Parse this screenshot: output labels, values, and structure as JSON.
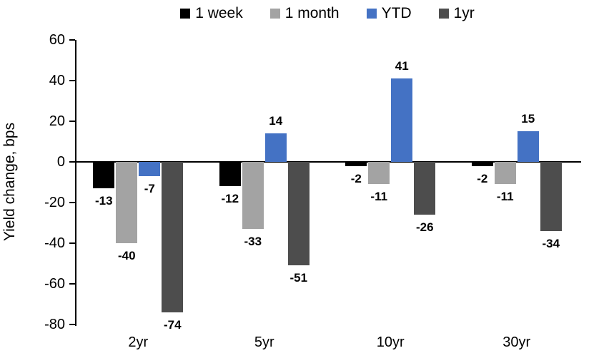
{
  "chart_data": {
    "type": "bar",
    "title": "",
    "xlabel": "",
    "ylabel": "Yield change, bps",
    "categories": [
      "2yr",
      "5yr",
      "10yr",
      "30yr"
    ],
    "series": [
      {
        "name": "1 week",
        "color": "#000000",
        "values": [
          -13,
          -12,
          -2,
          -2
        ]
      },
      {
        "name": "1 month",
        "color": "#A3A3A3",
        "values": [
          -40,
          -33,
          -11,
          -11
        ]
      },
      {
        "name": "YTD",
        "color": "#4472C4",
        "values": [
          -7,
          14,
          41,
          15
        ]
      },
      {
        "name": "1yr",
        "color": "#4D4D4D",
        "values": [
          -74,
          -51,
          -26,
          -34
        ]
      }
    ],
    "ylim": [
      -80,
      60
    ],
    "yticks": [
      60,
      40,
      20,
      0,
      -20,
      -40,
      -60,
      -80
    ],
    "grid": false,
    "legend_position": "top",
    "data_labels": true
  }
}
